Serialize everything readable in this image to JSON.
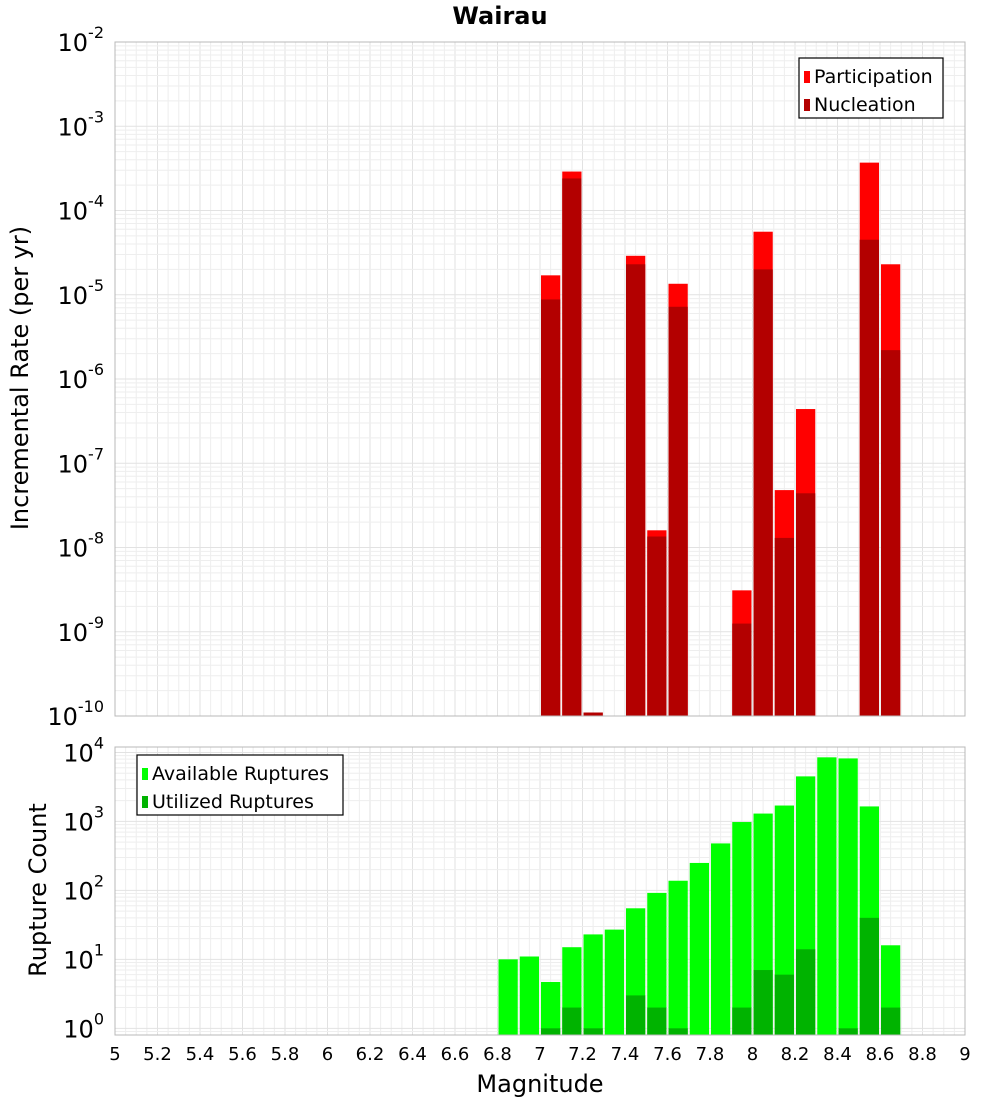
{
  "title": "Wairau",
  "chart_data": [
    {
      "type": "bar",
      "yscale": "log",
      "ylabel": "Incremental Rate (per yr)",
      "xlim": [
        5,
        9
      ],
      "ylim": [
        1e-10,
        0.01
      ],
      "yticks": [
        {
          "base": "10",
          "exp": "-2"
        },
        {
          "base": "10",
          "exp": "-3"
        },
        {
          "base": "10",
          "exp": "-4"
        },
        {
          "base": "10",
          "exp": "-5"
        },
        {
          "base": "10",
          "exp": "-6"
        },
        {
          "base": "10",
          "exp": "-7"
        },
        {
          "base": "10",
          "exp": "-8"
        },
        {
          "base": "10",
          "exp": "-9"
        },
        {
          "base": "10",
          "exp": "-10"
        }
      ],
      "legend_position": "top-right",
      "x": [
        7.05,
        7.15,
        7.25,
        7.45,
        7.55,
        7.65,
        7.95,
        8.05,
        8.15,
        8.25,
        8.55,
        8.65
      ],
      "series": [
        {
          "name": "Participation",
          "color": "#ff0000",
          "values": [
            1.7e-05,
            0.00029,
            1.1e-10,
            2.9e-05,
            1.6e-08,
            1.35e-05,
            3.1e-09,
            5.6e-05,
            4.8e-08,
            4.4e-07,
            0.00037,
            2.3e-05
          ]
        },
        {
          "name": "Nucleation",
          "color": "#b30000",
          "values": [
            8.8e-06,
            0.00024,
            1.1e-10,
            2.3e-05,
            1.35e-08,
            7.2e-06,
            1.25e-09,
            2e-05,
            1.3e-08,
            4.4e-08,
            4.5e-05,
            2.2e-06
          ]
        }
      ]
    },
    {
      "type": "bar",
      "yscale": "log",
      "ylabel": "Rupture Count",
      "xlabel": "Magnitude",
      "xlim": [
        5,
        9
      ],
      "ylim": [
        0.8,
        12000
      ],
      "yticks": [
        {
          "base": "10",
          "exp": "4",
          "value": 10000
        },
        {
          "base": "10",
          "exp": "3",
          "value": 1000
        },
        {
          "base": "10",
          "exp": "2",
          "value": 100
        },
        {
          "base": "10",
          "exp": "1",
          "value": 10
        },
        {
          "base": "10",
          "exp": "0",
          "value": 1
        }
      ],
      "xticks": [
        "5",
        "5.2",
        "5.4",
        "5.6",
        "5.8",
        "6",
        "6.2",
        "6.4",
        "6.6",
        "6.8",
        "7",
        "7.2",
        "7.4",
        "7.6",
        "7.8",
        "8",
        "8.2",
        "8.4",
        "8.6",
        "8.8",
        "9"
      ],
      "legend_position": "top-left",
      "x": [
        6.85,
        6.95,
        7.05,
        7.15,
        7.25,
        7.35,
        7.45,
        7.55,
        7.65,
        7.75,
        7.85,
        7.95,
        8.05,
        8.15,
        8.25,
        8.35,
        8.45,
        8.55,
        8.65
      ],
      "series": [
        {
          "name": "Available Ruptures",
          "color": "#00ff00",
          "values": [
            10,
            11,
            4.7,
            15,
            23,
            27,
            55,
            92,
            138,
            250,
            480,
            980,
            1300,
            1700,
            4500,
            8500,
            8200,
            1650,
            16
          ]
        },
        {
          "name": "Utilized Ruptures",
          "color": "#00b300",
          "values": [
            0,
            0,
            1,
            2,
            1,
            0,
            3,
            2,
            1,
            0,
            0,
            2,
            7,
            6,
            14,
            0,
            1,
            40,
            2
          ]
        }
      ]
    }
  ]
}
